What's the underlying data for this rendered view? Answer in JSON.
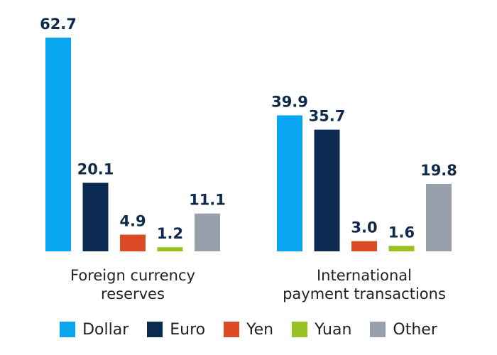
{
  "chart_data": {
    "type": "bar",
    "categories": [
      "Foreign currency reserves",
      "International payment transactions"
    ],
    "category_lines": [
      [
        "Foreign currency",
        "reserves"
      ],
      [
        "International",
        "payment transactions"
      ]
    ],
    "series": [
      {
        "name": "Dollar",
        "color": "#0aa5f0",
        "values": [
          62.7,
          39.9
        ]
      },
      {
        "name": "Euro",
        "color": "#0c2b52",
        "values": [
          20.1,
          35.7
        ]
      },
      {
        "name": "Yen",
        "color": "#dd4b26",
        "values": [
          4.9,
          3.0
        ]
      },
      {
        "name": "Yuan",
        "color": "#98c21f",
        "values": [
          1.2,
          1.6
        ]
      },
      {
        "name": "Other",
        "color": "#98a1ab",
        "values": [
          11.1,
          19.8
        ]
      }
    ],
    "value_labels": [
      [
        "62.7",
        "39.9"
      ],
      [
        "20.1",
        "35.7"
      ],
      [
        "4.9",
        "3.0"
      ],
      [
        "1.2",
        "1.6"
      ],
      [
        "11.1",
        "19.8"
      ]
    ],
    "title": "",
    "xlabel": "",
    "ylabel": "",
    "ylim": [
      0,
      62.7
    ],
    "grid": false,
    "legend_position": "bottom"
  }
}
